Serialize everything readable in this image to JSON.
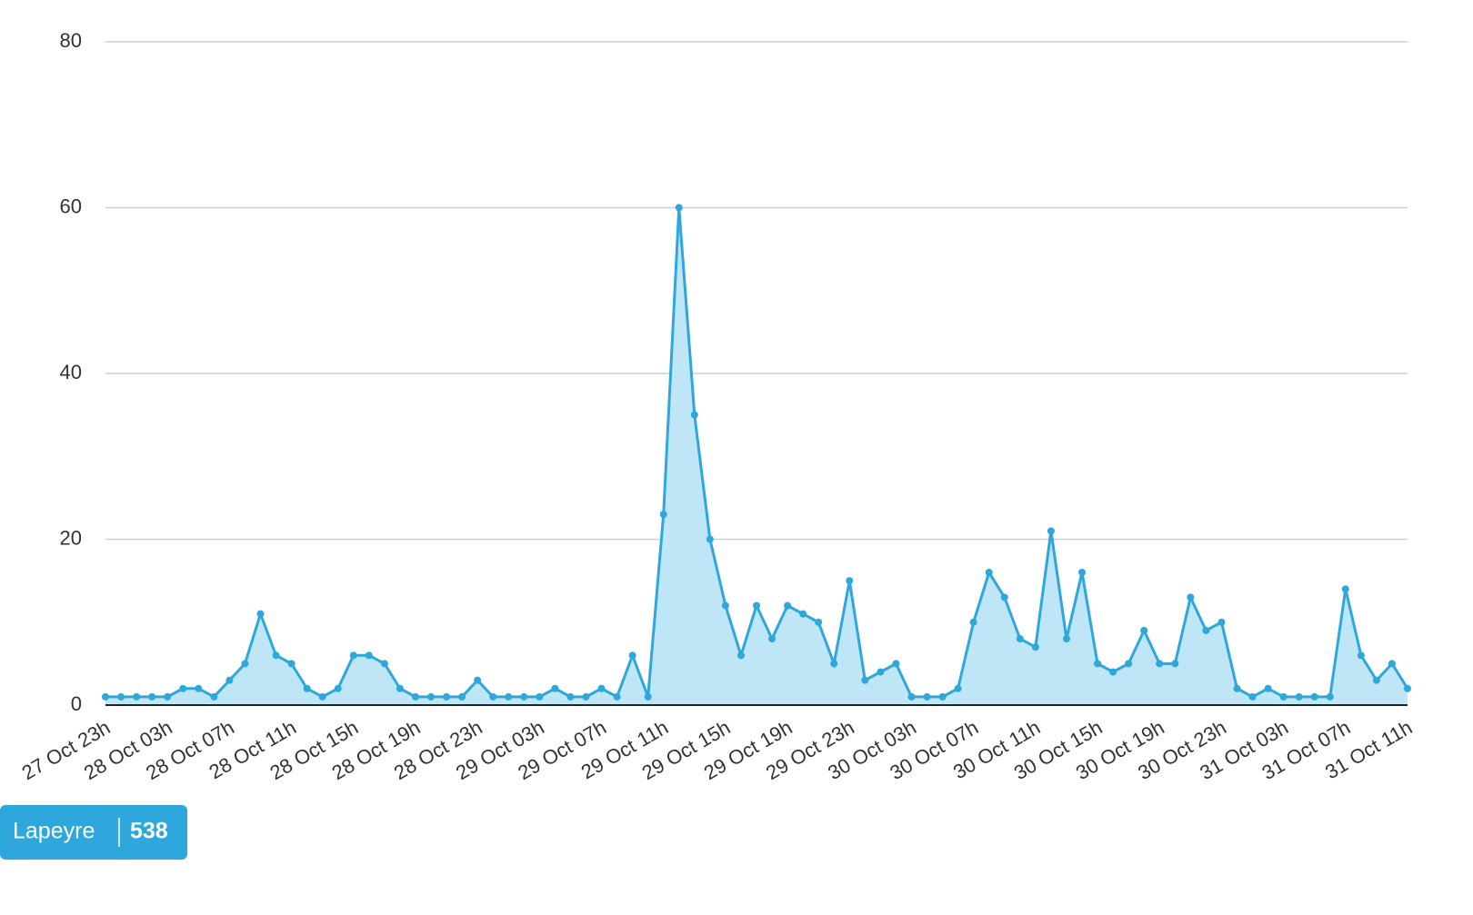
{
  "chart_data": {
    "type": "area",
    "categories": [
      "27 Oct 23h",
      null,
      null,
      null,
      "28 Oct 03h",
      null,
      null,
      null,
      "28 Oct 07h",
      null,
      null,
      null,
      "28 Oct 11h",
      null,
      null,
      null,
      "28 Oct 15h",
      null,
      null,
      null,
      "28 Oct 19h",
      null,
      null,
      null,
      "28 Oct 23h",
      null,
      null,
      null,
      "29 Oct 03h",
      null,
      null,
      null,
      "29 Oct 07h",
      null,
      null,
      null,
      "29 Oct 11h",
      null,
      null,
      null,
      "29 Oct 15h",
      null,
      null,
      null,
      "29 Oct 19h",
      null,
      null,
      null,
      "29 Oct 23h",
      null,
      null,
      null,
      "30 Oct 03h",
      null,
      null,
      null,
      "30 Oct 07h",
      null,
      null,
      null,
      "30 Oct 11h",
      null,
      null,
      null,
      "30 Oct 15h",
      null,
      null,
      null,
      "30 Oct 19h",
      null,
      null,
      null,
      "30 Oct 23h",
      null,
      null,
      null,
      "31 Oct 03h",
      null,
      null,
      null,
      "31 Oct 07h",
      null,
      null,
      null,
      "31 Oct 11h"
    ],
    "series": [
      {
        "name": "Lapeyre",
        "total": 538,
        "color": "#2ea7dc",
        "fill": "#bfe6f6",
        "values": [
          1,
          1,
          1,
          1,
          1,
          2,
          2,
          1,
          3,
          5,
          11,
          6,
          5,
          2,
          1,
          2,
          6,
          6,
          5,
          2,
          1,
          1,
          1,
          1,
          3,
          1,
          1,
          1,
          1,
          2,
          1,
          1,
          2,
          1,
          6,
          1,
          23,
          60,
          35,
          20,
          12,
          6,
          12,
          8,
          12,
          11,
          10,
          5,
          15,
          3,
          4,
          5,
          1,
          1,
          1,
          2,
          10,
          16,
          13,
          8,
          7,
          21,
          8,
          16,
          5,
          4,
          5,
          9,
          5,
          5,
          13,
          9,
          10,
          2,
          1,
          2,
          1,
          1,
          1,
          1,
          14,
          6,
          3,
          5,
          2
        ]
      }
    ],
    "ylim": [
      0,
      80
    ],
    "yticks": [
      0,
      20,
      40,
      60,
      80
    ],
    "grid": true
  }
}
